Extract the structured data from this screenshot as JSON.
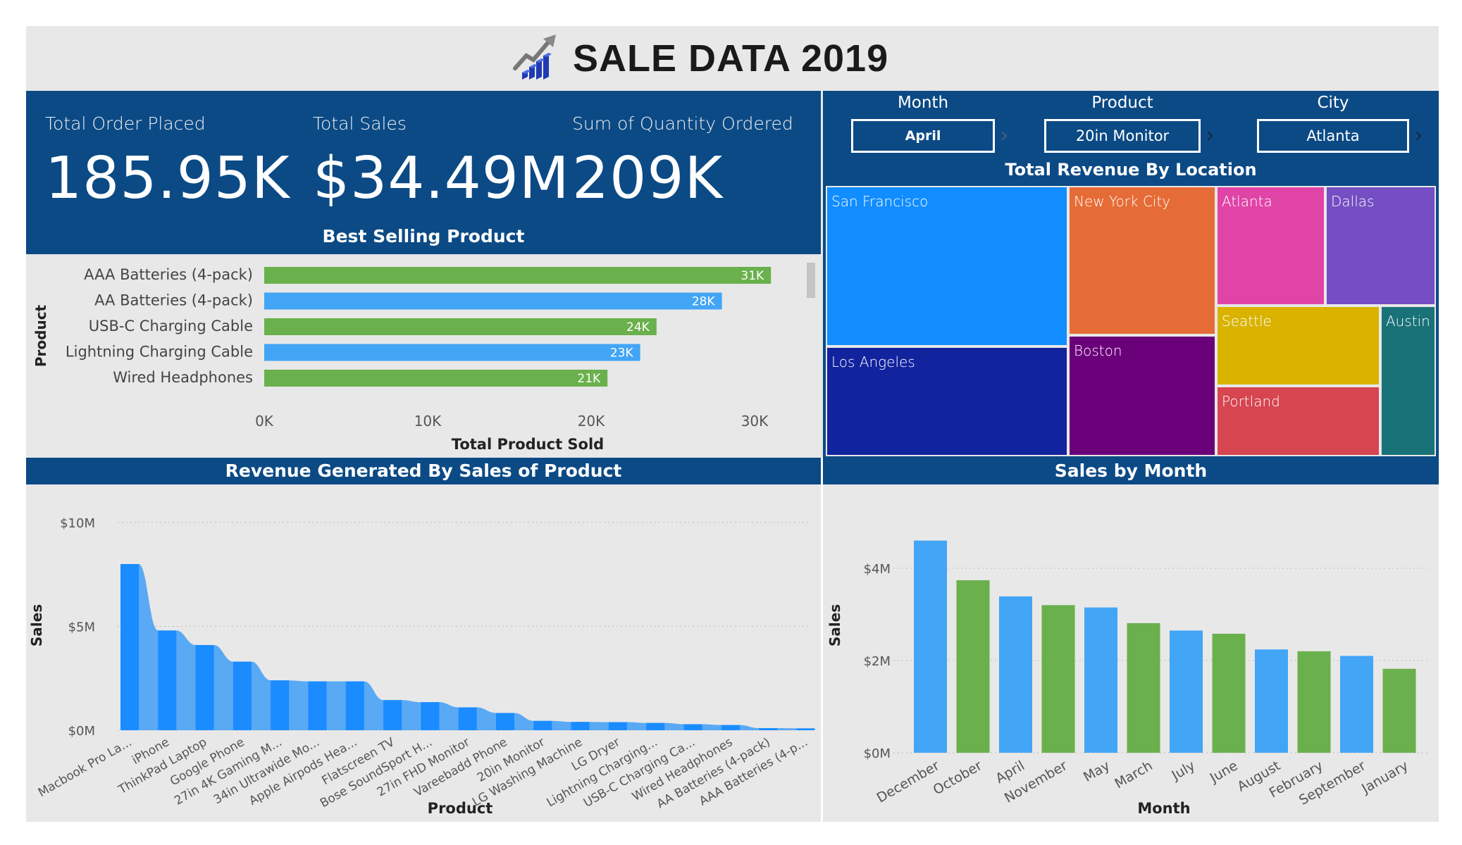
{
  "title": {
    "text": "SALE DATA 2019",
    "icon": "rising-bar-chart-icon"
  },
  "kpis": [
    {
      "label": "Total Order Placed",
      "value": "185.95K"
    },
    {
      "label": "Total Sales",
      "value": "$34.49M"
    },
    {
      "label": "Sum of Quantity Ordered",
      "value": "209K"
    }
  ],
  "filters": [
    {
      "label": "Month",
      "value": "April"
    },
    {
      "label": "Product",
      "value": "20in Monitor"
    },
    {
      "label": "City",
      "value": "Atlanta"
    }
  ],
  "best_selling": {
    "title": "Best Selling Product",
    "chart_data": {
      "type": "bar",
      "orientation": "horizontal",
      "categories": [
        "AAA Batteries (4-pack)",
        "AA Batteries (4-pack)",
        "USB-C Charging Cable",
        "Lightning Charging Cable",
        "Wired Headphones"
      ],
      "values": [
        31000,
        28000,
        24000,
        23000,
        21000
      ],
      "data_labels": [
        "31K",
        "28K",
        "24K",
        "23K",
        "21K"
      ],
      "colors": [
        "#6ab04c",
        "#42a5f5",
        "#6ab04c",
        "#42a5f5",
        "#6ab04c"
      ],
      "xlabel": "Total Product Sold",
      "ylabel": "Product",
      "xlim": [
        0,
        33000
      ],
      "xticks": [
        0,
        10000,
        20000,
        30000
      ],
      "xtick_labels": [
        "0K",
        "10K",
        "20K",
        "30K"
      ]
    }
  },
  "treemap": {
    "title": "Total Revenue By Location",
    "chart_data": {
      "type": "treemap",
      "cells": [
        {
          "label": "San Francisco",
          "color": "#118dff"
        },
        {
          "label": "Los Angeles",
          "color": "#12239e"
        },
        {
          "label": "New York City",
          "color": "#e66c37"
        },
        {
          "label": "Boston",
          "color": "#6b007b"
        },
        {
          "label": "Atlanta",
          "color": "#e044a7"
        },
        {
          "label": "Dallas",
          "color": "#744ec2"
        },
        {
          "label": "Seattle",
          "color": "#d9b300"
        },
        {
          "label": "Portland",
          "color": "#d64550"
        },
        {
          "label": "Austin",
          "color": "#197278"
        }
      ]
    }
  },
  "revenue": {
    "title": "Revenue Generated By Sales of Product",
    "chart_data": {
      "type": "bar",
      "categories": [
        "Macbook Pro La...",
        "iPhone",
        "ThinkPad Laptop",
        "Google Phone",
        "27in 4K Gaming M...",
        "34in Ultrawide Mo...",
        "Apple Airpods Hea...",
        "Flatscreen TV",
        "Bose SoundSport H...",
        "27in FHD Monitor",
        "Vareebadd Phone",
        "20in Monitor",
        "LG Washing Machine",
        "LG Dryer",
        "Lightning Charging...",
        "USB-C Charging Ca...",
        "Wired Headphones",
        "AA Batteries (4-pack)",
        "AAA Batteries (4-p..."
      ],
      "values": [
        8.0,
        4.8,
        4.1,
        3.3,
        2.4,
        2.35,
        2.35,
        1.45,
        1.35,
        1.1,
        0.83,
        0.45,
        0.4,
        0.39,
        0.35,
        0.29,
        0.25,
        0.1,
        0.09
      ],
      "unit": "$M",
      "xlabel": "Product",
      "ylabel": "Sales",
      "ylim": [
        0,
        10
      ],
      "yticks": [
        0,
        5,
        10
      ],
      "ytick_labels": [
        "$0M",
        "$5M",
        "$10M"
      ]
    }
  },
  "monthly": {
    "title": "Sales by Month",
    "chart_data": {
      "type": "bar",
      "categories": [
        "December",
        "October",
        "April",
        "November",
        "May",
        "March",
        "July",
        "June",
        "August",
        "February",
        "September",
        "January"
      ],
      "values": [
        4.6,
        3.74,
        3.39,
        3.2,
        3.15,
        2.81,
        2.65,
        2.58,
        2.24,
        2.2,
        2.1,
        1.82
      ],
      "unit": "$M",
      "colors": [
        "#42a5f5",
        "#6ab04c"
      ],
      "xlabel": "Month",
      "ylabel": "Sales",
      "ylim": [
        0,
        5
      ],
      "yticks": [
        0,
        2,
        4
      ],
      "ytick_labels": [
        "$0M",
        "$2M",
        "$4M"
      ]
    }
  }
}
